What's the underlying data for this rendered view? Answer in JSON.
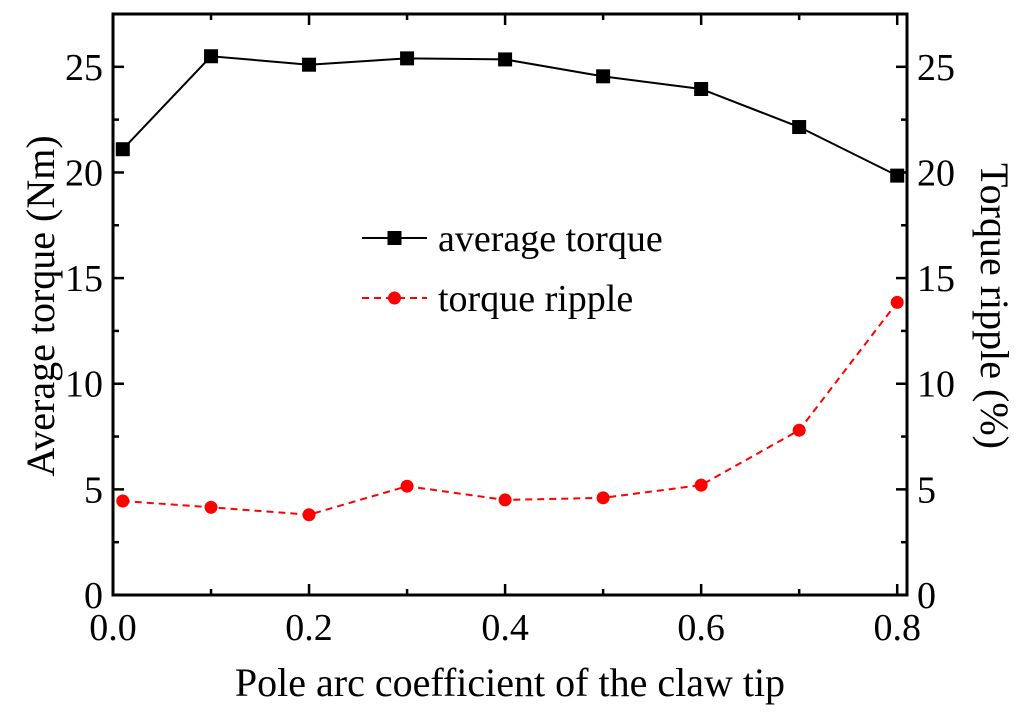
{
  "chart_data": {
    "type": "line",
    "title": "",
    "xlabel": "Pole arc coefficient of the claw tip",
    "ylabel_left": "Average torque (Nm)",
    "ylabel_right": "Torque ripple (%)",
    "xlim": [
      0.0,
      0.81
    ],
    "ylim_left": [
      0,
      27.5
    ],
    "ylim_right": [
      0,
      27.5
    ],
    "x_ticks": [
      "0.0",
      "0.2",
      "0.4",
      "0.6",
      "0.8"
    ],
    "y_ticks_left": [
      "0",
      "5",
      "10",
      "15",
      "20",
      "25"
    ],
    "y_ticks_right": [
      "0",
      "5",
      "10",
      "15",
      "20",
      "25"
    ],
    "grid": false,
    "legend_position": "center",
    "x": [
      0.01,
      0.1,
      0.2,
      0.3,
      0.4,
      0.5,
      0.6,
      0.7,
      0.8
    ],
    "series": [
      {
        "name": "average torque",
        "axis": "left",
        "color": "#000000",
        "line_style": "solid",
        "marker": "square",
        "values": [
          21.1,
          25.5,
          25.1,
          25.4,
          25.35,
          24.55,
          23.95,
          22.15,
          19.85
        ]
      },
      {
        "name": "torque ripple",
        "axis": "right",
        "color": "#ff0000",
        "line_style": "dashed",
        "marker": "circle",
        "values": [
          4.45,
          4.15,
          3.8,
          5.15,
          4.5,
          4.6,
          5.2,
          7.8,
          13.85
        ]
      }
    ]
  }
}
